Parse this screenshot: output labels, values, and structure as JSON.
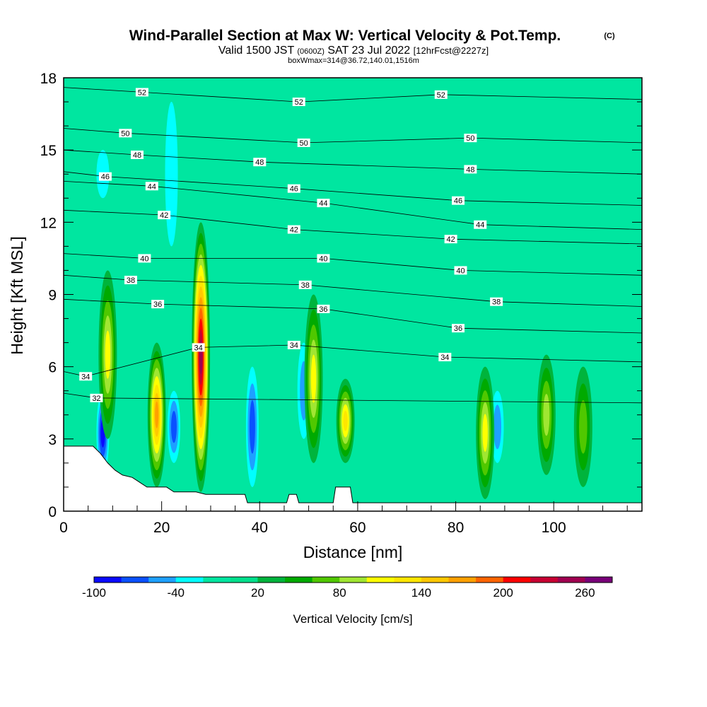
{
  "chart_data": {
    "type": "heatmap",
    "title": "Wind-Parallel Section at Max W: Vertical Velocity & Pot.Temp.",
    "title_mark": "(C)",
    "subtitle_parts": [
      "Valid 1500 JST",
      "(0600Z)",
      "SAT 23 Jul 2022",
      "[12hrFcst@2227z]"
    ],
    "subtitle2": "boxWmax=314@36.72,140.01,1516m",
    "xlabel": "Distance [nm]",
    "ylabel": "Height [Kft MSL]",
    "xlim": [
      0,
      118
    ],
    "ylim": [
      0,
      18
    ],
    "x_ticks": [
      0,
      20,
      40,
      60,
      80,
      100
    ],
    "y_ticks": [
      0,
      3,
      6,
      9,
      12,
      15,
      18
    ],
    "colorbar": {
      "label": "Vertical Velocity [cm/s]",
      "tick_labels": [
        "-100",
        "-40",
        "20",
        "80",
        "140",
        "200",
        "260"
      ],
      "tick_values": [
        -100,
        -40,
        20,
        80,
        140,
        200,
        260
      ],
      "bins": [
        -100,
        -80,
        -60,
        -40,
        -20,
        0,
        20,
        40,
        60,
        80,
        100,
        120,
        140,
        160,
        180,
        200,
        220,
        240,
        260,
        280
      ],
      "colors": [
        "#0a0aff",
        "#0a50ff",
        "#1ea0ff",
        "#00ffff",
        "#00e6a0",
        "#00e08c",
        "#00b43c",
        "#00aa00",
        "#50c800",
        "#a0e632",
        "#ffff00",
        "#ffe600",
        "#ffc800",
        "#ffa000",
        "#ff6400",
        "#ff0000",
        "#c80032",
        "#a00050",
        "#780078"
      ]
    },
    "updraft_cores": [
      {
        "x": 9,
        "z": [
          3,
          10
        ],
        "w": 100
      },
      {
        "x": 19,
        "z": [
          1,
          7
        ],
        "w": 160
      },
      {
        "x": 28,
        "z": [
          0.8,
          12
        ],
        "w": 240
      },
      {
        "x": 51,
        "z": [
          2,
          9
        ],
        "w": 110
      },
      {
        "x": 57.5,
        "z": [
          2,
          5.5
        ],
        "w": 130
      },
      {
        "x": 86,
        "z": [
          0.5,
          6
        ],
        "w": 100
      },
      {
        "x": 98.5,
        "z": [
          1.5,
          6.5
        ],
        "w": 80
      },
      {
        "x": 106,
        "z": [
          1,
          6
        ],
        "w": 60
      }
    ],
    "downdraft_cores": [
      {
        "x": 8,
        "z": [
          1.5,
          5
        ],
        "w": -90
      },
      {
        "x": 22.5,
        "z": [
          2,
          5
        ],
        "w": -60
      },
      {
        "x": 38.5,
        "z": [
          1,
          6
        ],
        "w": -70
      },
      {
        "x": 49,
        "z": [
          3,
          7
        ],
        "w": -45
      },
      {
        "x": 88.5,
        "z": [
          2,
          5
        ],
        "w": -45
      },
      {
        "x": 8,
        "z": [
          13,
          15
        ],
        "w": -30
      },
      {
        "x": 22,
        "z": [
          11,
          17
        ],
        "w": -35
      }
    ],
    "theta_contour_labels": [
      {
        "text": "52",
        "x": 16,
        "z": 17.4
      },
      {
        "text": "52",
        "x": 48,
        "z": 17.0
      },
      {
        "text": "52",
        "x": 77,
        "z": 17.3
      },
      {
        "text": "50",
        "x": 12.6,
        "z": 15.7
      },
      {
        "text": "50",
        "x": 49,
        "z": 15.3
      },
      {
        "text": "50",
        "x": 83,
        "z": 15.5
      },
      {
        "text": "48",
        "x": 15,
        "z": 14.8
      },
      {
        "text": "48",
        "x": 40,
        "z": 14.5
      },
      {
        "text": "48",
        "x": 83,
        "z": 14.2
      },
      {
        "text": "46",
        "x": 8.5,
        "z": 13.9
      },
      {
        "text": "46",
        "x": 47,
        "z": 13.4
      },
      {
        "text": "46",
        "x": 80.5,
        "z": 12.9
      },
      {
        "text": "44",
        "x": 18,
        "z": 13.5
      },
      {
        "text": "44",
        "x": 53,
        "z": 12.8
      },
      {
        "text": "44",
        "x": 85,
        "z": 11.9
      },
      {
        "text": "42",
        "x": 20.5,
        "z": 12.3
      },
      {
        "text": "42",
        "x": 47,
        "z": 11.7
      },
      {
        "text": "42",
        "x": 79,
        "z": 11.3
      },
      {
        "text": "40",
        "x": 16.5,
        "z": 10.5
      },
      {
        "text": "40",
        "x": 53,
        "z": 10.5
      },
      {
        "text": "40",
        "x": 81,
        "z": 10.0
      },
      {
        "text": "38",
        "x": 13.7,
        "z": 9.6
      },
      {
        "text": "38",
        "x": 49.3,
        "z": 9.4
      },
      {
        "text": "38",
        "x": 88.3,
        "z": 8.7
      },
      {
        "text": "36",
        "x": 19.2,
        "z": 8.6
      },
      {
        "text": "36",
        "x": 53,
        "z": 8.4
      },
      {
        "text": "36",
        "x": 80.5,
        "z": 7.6
      },
      {
        "text": "34",
        "x": 27.5,
        "z": 6.8
      },
      {
        "text": "34",
        "x": 47,
        "z": 6.9
      },
      {
        "text": "34",
        "x": 77.8,
        "z": 6.4
      },
      {
        "text": "34",
        "x": 4.5,
        "z": 5.6
      },
      {
        "text": "32",
        "x": 6.7,
        "z": 4.7
      }
    ],
    "terrain_profile": [
      [
        0,
        2.7
      ],
      [
        3,
        2.7
      ],
      [
        6,
        2.7
      ],
      [
        7.5,
        2.4
      ],
      [
        9,
        2.0
      ],
      [
        10.5,
        1.7
      ],
      [
        12,
        1.5
      ],
      [
        14,
        1.4
      ],
      [
        15.5,
        1.2
      ],
      [
        17,
        1.0
      ],
      [
        21,
        1.0
      ],
      [
        22.5,
        0.8
      ],
      [
        27,
        0.8
      ],
      [
        29,
        0.7
      ],
      [
        37,
        0.7
      ],
      [
        37.5,
        0.35
      ],
      [
        45.5,
        0.35
      ],
      [
        46,
        0.7
      ],
      [
        47.5,
        0.7
      ],
      [
        48,
        0.35
      ],
      [
        55,
        0.35
      ],
      [
        55.5,
        1.0
      ],
      [
        58.5,
        1.0
      ],
      [
        59,
        0.35
      ],
      [
        118,
        0.35
      ]
    ],
    "legend_position": "bottom"
  }
}
